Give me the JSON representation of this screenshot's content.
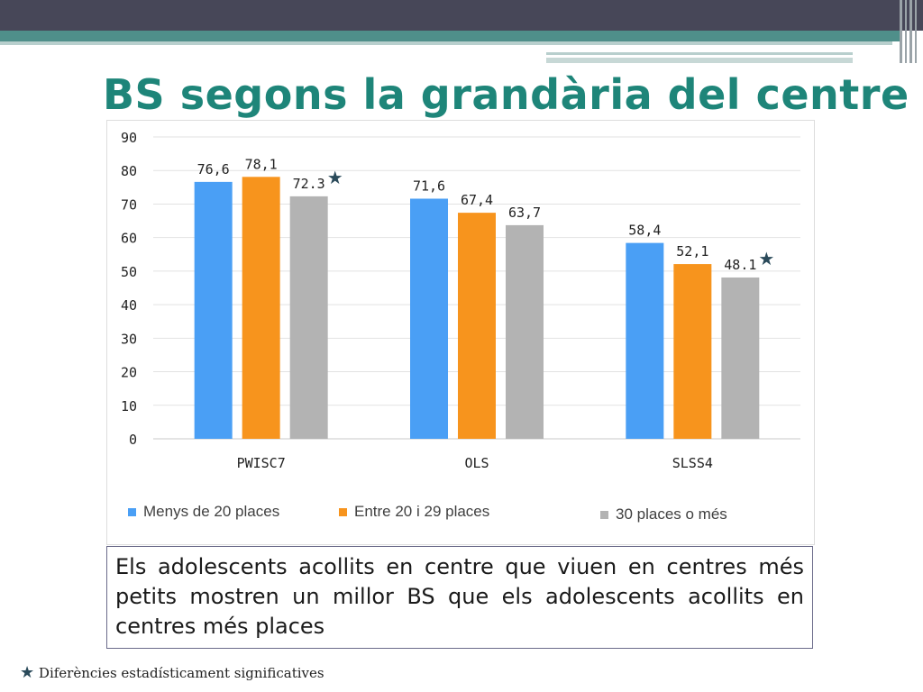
{
  "title": "BS segons la grandària del centre",
  "chart_data": {
    "type": "bar",
    "categories": [
      "PWISC7",
      "OLS",
      "SLSS4"
    ],
    "series": [
      {
        "name": "Menys de 20 places",
        "values": [
          76.6,
          71.6,
          58.4
        ],
        "labels": [
          "76,6",
          "71,6",
          "58,4"
        ],
        "color": "#4a9ff5"
      },
      {
        "name": "Entre 20 i 29 places",
        "values": [
          78.1,
          67.4,
          52.1
        ],
        "labels": [
          "78,1",
          "67,4",
          "52,1"
        ],
        "color": "#f7941d"
      },
      {
        "name": "30 places o més",
        "values": [
          72.3,
          63.7,
          48.1
        ],
        "labels": [
          "72.3",
          "63,7",
          "48.1"
        ],
        "color": "#b3b3b3"
      }
    ],
    "significant": [
      [
        2,
        0
      ],
      [
        2,
        2
      ]
    ],
    "ylim": [
      0,
      90
    ],
    "yticks": [
      0,
      10,
      20,
      30,
      40,
      50,
      60,
      70,
      80,
      90
    ],
    "grid": true,
    "legend": "bottom"
  },
  "note": "Els adolescents acollits en centre que viuen en centres més petits mostren un millor BS que els adolescents acollits en centres més places",
  "footnote": {
    "symbol": "★",
    "text": "Diferències estadísticament significatives"
  },
  "colors": {
    "title": "#1e8579",
    "star": "#2a4a5a"
  }
}
